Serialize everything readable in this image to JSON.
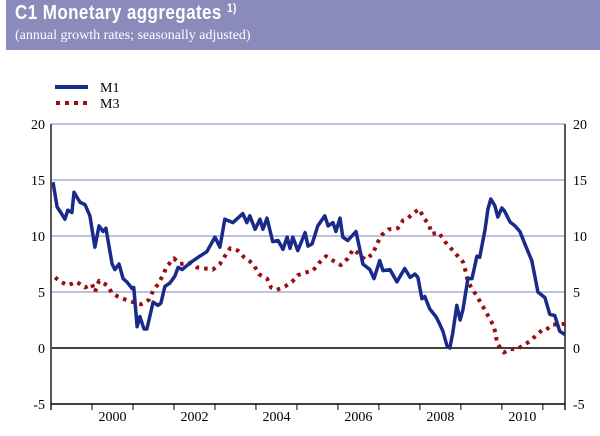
{
  "header": {
    "title": "C1 Monetary aggregates",
    "title_note": "1)",
    "subtitle": "(annual growth rates; seasonally adjusted)"
  },
  "colors": {
    "header_bg": "#8a8bbb",
    "m1": "#1a2a8a",
    "m3": "#9a1010",
    "grid": "#7f83c4"
  },
  "chart_data": {
    "type": "line",
    "title": "C1 Monetary aggregates",
    "subtitle": "(annual growth rates; seasonally adjusted)",
    "xlabel": "",
    "ylabel": "",
    "xlim": [
      1999.0,
      2011.54
    ],
    "ylim": [
      -5,
      20
    ],
    "yticks": [
      -5,
      0,
      5,
      10,
      15,
      20
    ],
    "ytick_labels": [
      "-5",
      "0",
      "5",
      "10",
      "15",
      "20"
    ],
    "xtick_labels": [
      "2000",
      "2002",
      "2004",
      "2006",
      "2008",
      "2010"
    ],
    "grid": true,
    "legend_position": "top-left",
    "series": [
      {
        "name": "M1",
        "style": "solid",
        "color": "#1a2a8a",
        "x": [
          1999.05,
          1999.15,
          1999.24,
          1999.34,
          1999.41,
          1999.51,
          1999.56,
          1999.71,
          1999.83,
          1999.95,
          2000.07,
          2000.17,
          2000.27,
          2000.34,
          2000.49,
          2000.56,
          2000.66,
          2000.76,
          2000.85,
          2000.98,
          2001.02,
          2001.1,
          2001.17,
          2001.27,
          2001.34,
          2001.49,
          2001.61,
          2001.68,
          2001.78,
          2001.9,
          2002.02,
          2002.1,
          2002.2,
          2002.39,
          2002.59,
          2002.8,
          2003.0,
          2003.12,
          2003.24,
          2003.44,
          2003.68,
          2003.78,
          2003.85,
          2003.98,
          2004.1,
          2004.17,
          2004.27,
          2004.41,
          2004.54,
          2004.66,
          2004.76,
          2004.83,
          2004.9,
          2005.02,
          2005.2,
          2005.27,
          2005.37,
          2005.51,
          2005.68,
          2005.76,
          2005.88,
          2005.95,
          2006.05,
          2006.12,
          2006.24,
          2006.44,
          2006.61,
          2006.78,
          2006.88,
          2007.02,
          2007.1,
          2007.27,
          2007.44,
          2007.63,
          2007.76,
          2007.88,
          2007.95,
          2008.05,
          2008.12,
          2008.24,
          2008.39,
          2008.46,
          2008.56,
          2008.66,
          2008.73,
          2008.8,
          2008.9,
          2008.98,
          2009.05,
          2009.17,
          2009.27,
          2009.39,
          2009.46,
          2009.59,
          2009.66,
          2009.73,
          2009.83,
          2009.9,
          2010.0,
          2010.07,
          2010.2,
          2010.32,
          2010.44,
          2010.56,
          2010.73,
          2010.88,
          2011.05,
          2011.17,
          2011.29,
          2011.41,
          2011.54
        ],
        "y": [
          14.8,
          12.6,
          12.1,
          11.5,
          12.3,
          12.1,
          13.9,
          13.0,
          12.8,
          11.8,
          9.0,
          10.9,
          10.4,
          10.7,
          7.5,
          7.0,
          7.5,
          6.2,
          5.9,
          5.3,
          5.4,
          1.9,
          2.8,
          1.7,
          1.7,
          4.1,
          3.8,
          4.0,
          5.5,
          5.8,
          6.4,
          7.2,
          7.0,
          7.6,
          8.1,
          8.6,
          9.9,
          9.0,
          11.5,
          11.2,
          12.0,
          11.2,
          11.8,
          10.6,
          11.5,
          10.6,
          11.6,
          9.5,
          9.6,
          8.8,
          9.9,
          8.9,
          9.9,
          8.7,
          10.3,
          9.1,
          9.3,
          10.9,
          11.8,
          10.9,
          11.2,
          10.4,
          11.6,
          9.9,
          9.6,
          10.4,
          7.5,
          7.0,
          6.2,
          7.8,
          6.9,
          7.0,
          5.9,
          7.1,
          6.3,
          6.6,
          6.3,
          4.4,
          4.6,
          3.5,
          2.8,
          2.3,
          1.5,
          0.2,
          0.0,
          1.3,
          3.8,
          2.5,
          3.4,
          6.2,
          6.2,
          8.2,
          8.1,
          10.6,
          12.4,
          13.3,
          12.7,
          11.7,
          12.5,
          12.2,
          11.25,
          10.9,
          10.4,
          9.3,
          7.8,
          5.0,
          4.5,
          3.0,
          2.9,
          1.5,
          1.2
        ]
      },
      {
        "name": "M3",
        "style": "dotted",
        "color": "#9a1010",
        "x": [
          1999.1,
          1999.24,
          1999.41,
          1999.63,
          1999.83,
          2000.0,
          2000.07,
          2000.17,
          2000.37,
          2000.49,
          2000.63,
          2000.83,
          2001.0,
          2001.2,
          2001.39,
          2001.49,
          2001.61,
          2001.73,
          2001.83,
          2002.0,
          2002.15,
          2002.39,
          2002.56,
          2002.76,
          2002.95,
          2003.12,
          2003.24,
          2003.37,
          2003.56,
          2003.71,
          2003.83,
          2003.95,
          2004.07,
          2004.27,
          2004.37,
          2004.51,
          2004.71,
          2004.88,
          2005.02,
          2005.17,
          2005.39,
          2005.54,
          2005.71,
          2005.88,
          2006.07,
          2006.24,
          2006.37,
          2006.51,
          2006.66,
          2006.85,
          2006.95,
          2007.07,
          2007.24,
          2007.37,
          2007.46,
          2007.59,
          2007.71,
          2007.83,
          2007.98,
          2008.1,
          2008.22,
          2008.29,
          2008.46,
          2008.61,
          2008.78,
          2008.9,
          2009.05,
          2009.12,
          2009.17,
          2009.29,
          2009.41,
          2009.54,
          2009.66,
          2009.78,
          2009.85,
          2009.88,
          2010.05,
          2010.2,
          2010.37,
          2010.51,
          2010.68,
          2010.83,
          2010.98,
          2011.07,
          2011.24,
          2011.41,
          2011.59
        ],
        "y": [
          6.3,
          5.9,
          5.6,
          5.9,
          5.4,
          5.7,
          5.0,
          6.0,
          5.6,
          4.9,
          4.6,
          4.3,
          4.1,
          3.9,
          4.3,
          5.1,
          5.7,
          6.5,
          7.3,
          8.0,
          7.5,
          7.6,
          7.2,
          7.1,
          7.0,
          7.5,
          8.2,
          8.9,
          8.7,
          8.1,
          7.8,
          7.4,
          6.6,
          6.2,
          5.4,
          5.2,
          5.5,
          5.9,
          6.5,
          6.7,
          6.9,
          7.6,
          8.2,
          7.8,
          7.4,
          8.0,
          8.8,
          8.4,
          7.9,
          8.4,
          9.3,
          10.1,
          10.6,
          10.6,
          10.7,
          11.4,
          11.6,
          12.0,
          12.4,
          11.6,
          11.0,
          10.2,
          10.3,
          9.5,
          8.8,
          8.3,
          7.7,
          6.8,
          5.9,
          5.2,
          4.5,
          3.7,
          2.9,
          2.1,
          1.3,
          0.4,
          -0.4,
          -0.1,
          -0.1,
          0.2,
          0.6,
          1.1,
          1.6,
          1.6,
          2.1,
          2.1,
          2.2
        ]
      }
    ]
  }
}
